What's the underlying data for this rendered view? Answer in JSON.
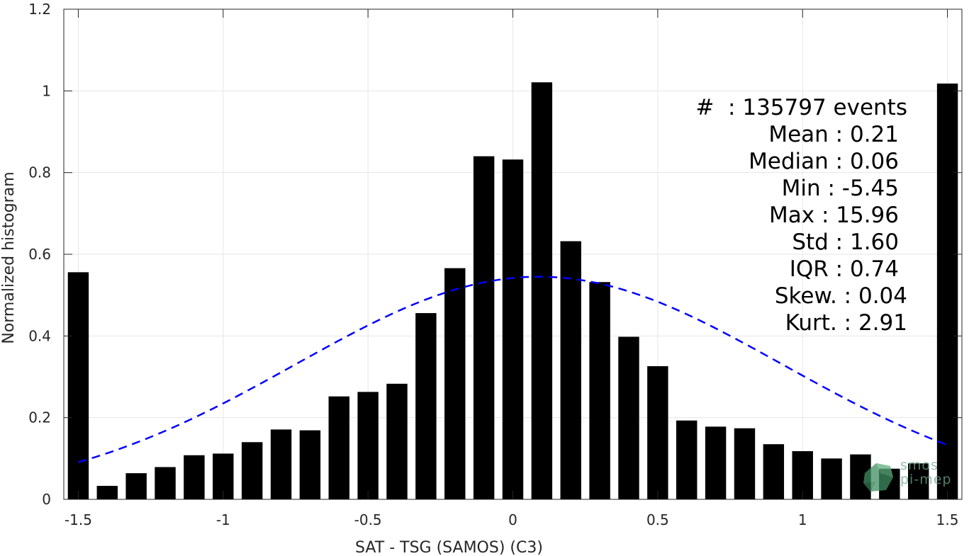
{
  "chart_data": {
    "type": "bar",
    "xlabel": "SAT - TSG (SAMOS) (C3)",
    "ylabel": "Normalized histogram",
    "xlim": [
      -1.55,
      1.55
    ],
    "ylim": [
      0,
      1.2
    ],
    "x_ticks": [
      -1.5,
      -1,
      -0.5,
      0,
      0.5,
      1,
      1.5
    ],
    "x_tick_labels": [
      "-1.5",
      "-1",
      "-0.5",
      "0",
      "0.5",
      "1",
      "1.5"
    ],
    "y_ticks": [
      0,
      0.2,
      0.4,
      0.6,
      0.8,
      1,
      1.2
    ],
    "y_tick_labels": [
      "0",
      "0.2",
      "0.4",
      "0.6",
      "0.8",
      "1",
      "1.2"
    ],
    "grid": true,
    "bars": {
      "x": [
        -1.5,
        -1.4,
        -1.3,
        -1.2,
        -1.1,
        -1.0,
        -0.9,
        -0.8,
        -0.7,
        -0.6,
        -0.5,
        -0.4,
        -0.3,
        -0.2,
        -0.1,
        0.0,
        0.1,
        0.2,
        0.3,
        0.4,
        0.5,
        0.6,
        0.7,
        0.8,
        0.9,
        1.0,
        1.1,
        1.2,
        1.3,
        1.4,
        1.5
      ],
      "values": [
        0.556,
        0.033,
        0.064,
        0.079,
        0.108,
        0.112,
        0.14,
        0.171,
        0.169,
        0.252,
        0.263,
        0.283,
        0.456,
        0.566,
        0.84,
        0.832,
        1.021,
        0.632,
        0.532,
        0.398,
        0.326,
        0.193,
        0.178,
        0.174,
        0.135,
        0.118,
        0.1,
        0.11,
        0.075,
        0.088,
        1.018
      ],
      "color": "#000000"
    },
    "fit_curve": {
      "style": "dashed",
      "color": "#0000ff",
      "mean": 0.09,
      "sigma": 0.84,
      "peak": 0.545,
      "x_range": [
        -1.5,
        1.5
      ]
    },
    "stats": {
      "count": "#  : 135797 events",
      "mean": "Mean : 0.21",
      "median": "Median : 0.06",
      "min": "Min : -5.45",
      "max": "Max : 15.96",
      "std": "Std : 1.60",
      "iqr": "IQR : 0.74",
      "skew": "Skew. : 0.04",
      "kurt": "Kurt. : 2.91"
    }
  },
  "logo": {
    "line1": "smos",
    "line2": "pi-mep",
    "color": "#6fa889"
  }
}
